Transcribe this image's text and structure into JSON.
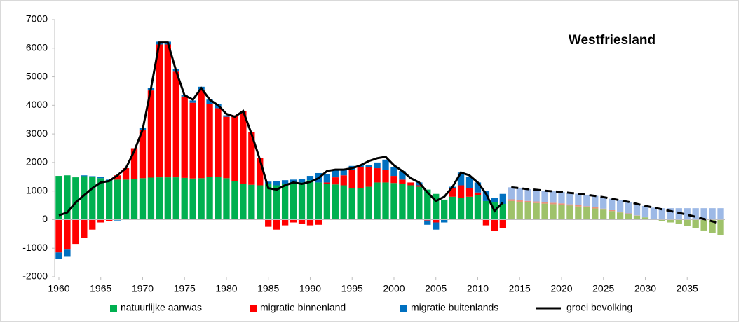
{
  "chart_data": {
    "type": "bar",
    "title": "Westfriesland",
    "x": [
      1960,
      1961,
      1962,
      1963,
      1964,
      1965,
      1966,
      1967,
      1968,
      1969,
      1970,
      1971,
      1972,
      1973,
      1974,
      1975,
      1976,
      1977,
      1978,
      1979,
      1980,
      1981,
      1982,
      1983,
      1984,
      1985,
      1986,
      1987,
      1988,
      1989,
      1990,
      1991,
      1992,
      1993,
      1994,
      1995,
      1996,
      1997,
      1998,
      1999,
      2000,
      2001,
      2002,
      2003,
      2004,
      2005,
      2006,
      2007,
      2008,
      2009,
      2010,
      2011,
      2012,
      2013,
      2014,
      2015,
      2016,
      2017,
      2018,
      2019,
      2020,
      2021,
      2022,
      2023,
      2024,
      2025,
      2026,
      2027,
      2028,
      2029,
      2030,
      2031,
      2032,
      2033,
      2034,
      2035,
      2036,
      2037,
      2038,
      2039
    ],
    "xlim": [
      1959.5,
      2039.5
    ],
    "xticks": [
      1960,
      1965,
      1970,
      1975,
      1980,
      1985,
      1990,
      1995,
      2000,
      2005,
      2010,
      2015,
      2020,
      2025,
      2030,
      2035
    ],
    "ylim": [
      -2000,
      7000
    ],
    "yticks": [
      -2000,
      -1000,
      0,
      1000,
      2000,
      3000,
      4000,
      5000,
      6000,
      7000
    ],
    "forecast_from": 2014,
    "series": [
      {
        "name": "natuurlijke aanwas",
        "color": "#00b050",
        "forecast_color": "#9fc26a",
        "values": [
          1530,
          1550,
          1480,
          1520,
          1500,
          1450,
          1370,
          1400,
          1400,
          1420,
          1450,
          1470,
          1480,
          1480,
          1480,
          1460,
          1440,
          1450,
          1500,
          1500,
          1450,
          1350,
          1250,
          1220,
          1200,
          1250,
          1200,
          1250,
          1300,
          1300,
          1380,
          1300,
          1250,
          1230,
          1200,
          1100,
          1100,
          1150,
          1300,
          1300,
          1280,
          1250,
          1200,
          1150,
          1050,
          900,
          700,
          800,
          750,
          800,
          850,
          650,
          600,
          550,
          650,
          620,
          600,
          580,
          560,
          540,
          520,
          490,
          460,
          430,
          390,
          350,
          300,
          250,
          200,
          140,
          80,
          20,
          -40,
          -100,
          -160,
          -230,
          -300,
          -380,
          -460,
          -550
        ]
      },
      {
        "name": "migratie binnenland",
        "color": "#ff0000",
        "forecast_color": "#e8927c",
        "values": [
          -1150,
          -1050,
          -850,
          -650,
          -350,
          -100,
          -50,
          150,
          400,
          1080,
          1700,
          3050,
          4650,
          4650,
          3700,
          2850,
          2650,
          3100,
          2550,
          2400,
          2150,
          2300,
          2550,
          1850,
          950,
          -250,
          -350,
          -200,
          -100,
          -150,
          -200,
          -180,
          50,
          250,
          350,
          650,
          750,
          700,
          500,
          450,
          250,
          150,
          100,
          50,
          -30,
          -100,
          0,
          300,
          450,
          300,
          100,
          -200,
          -400,
          -300,
          60,
          60,
          55,
          55,
          50,
          50,
          50,
          45,
          45,
          40,
          40,
          35,
          30,
          25,
          20,
          10,
          0,
          0,
          0,
          0,
          0,
          0,
          0,
          0,
          0,
          0
        ]
      },
      {
        "name": "migratie buitenlands",
        "color": "#0070c0",
        "forecast_color": "#9db9e6",
        "values": [
          -230,
          -250,
          0,
          30,
          20,
          50,
          30,
          -30,
          0,
          0,
          50,
          100,
          100,
          100,
          100,
          50,
          80,
          100,
          150,
          150,
          50,
          0,
          0,
          0,
          0,
          80,
          150,
          130,
          100,
          120,
          150,
          330,
          300,
          250,
          180,
          130,
          50,
          50,
          200,
          350,
          300,
          300,
          0,
          100,
          -150,
          -250,
          -100,
          50,
          450,
          400,
          350,
          350,
          150,
          350,
          420,
          420,
          410,
          410,
          400,
          400,
          400,
          400,
          400,
          400,
          400,
          400,
          400,
          400,
          400,
          400,
          400,
          400,
          400,
          400,
          400,
          400,
          400,
          400,
          400,
          400
        ]
      },
      {
        "name": "groei bevolking",
        "type": "line",
        "color": "#000000",
        "values": [
          150,
          250,
          600,
          850,
          1100,
          1300,
          1350,
          1550,
          1800,
          2400,
          3150,
          4600,
          6200,
          6200,
          5200,
          4350,
          4200,
          4600,
          4200,
          4000,
          3700,
          3600,
          3800,
          3000,
          2100,
          1100,
          1050,
          1200,
          1300,
          1250,
          1320,
          1450,
          1700,
          1750,
          1750,
          1800,
          1900,
          2050,
          2150,
          2200,
          1900,
          1700,
          1450,
          1300,
          950,
          650,
          800,
          1150,
          1650,
          1550,
          1300,
          900,
          300,
          600,
          1130,
          1100,
          1065,
          1045,
          1010,
          990,
          970,
          935,
          905,
          870,
          830,
          785,
          730,
          675,
          620,
          550,
          480,
          420,
          360,
          300,
          240,
          170,
          100,
          20,
          -60,
          -150
        ]
      }
    ]
  }
}
